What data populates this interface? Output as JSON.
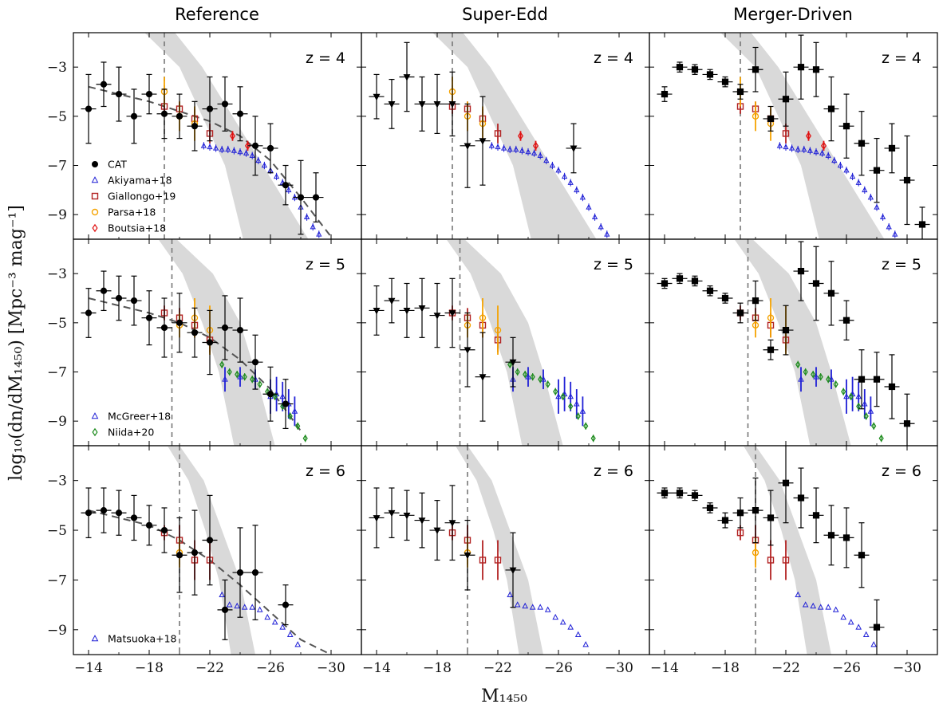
{
  "figure": {
    "column_titles": [
      "Reference",
      "Super-Edd",
      "Merger-Driven"
    ],
    "ylabel": "log₁₀(dn/dM₁₄₅₀) [Mpc⁻³ mag⁻¹]",
    "xlabel": "M₁₄₅₀",
    "x_ticks": [
      "−14",
      "−18",
      "−22",
      "−26",
      "−30"
    ],
    "y_ticks": [
      "−3",
      "−5",
      "−7",
      "−9"
    ],
    "z_labels": [
      "z = 4",
      "z = 5",
      "z = 6"
    ]
  },
  "legends": {
    "z4": [
      "CAT",
      "Akiyama+18",
      "Giallongo+19",
      "Parsa+18",
      "Boutsia+18"
    ],
    "z5": [
      "McGreer+18",
      "Niida+20"
    ],
    "z6": [
      "Matsuoka+18"
    ]
  },
  "colors": {
    "model": "#000000",
    "akiyama": "#1f1fd6",
    "giallongo": "#b22222",
    "parsa": "#f5a300",
    "boutsia": "#e01010",
    "mcgreer": "#1f1fd6",
    "niida": "#1b8a1b",
    "matsuoka": "#1f1fd6",
    "band": "#d9d9d9",
    "fit": "#555555"
  },
  "chart_data": {
    "type": "scatter",
    "xlim": [
      -13,
      -32
    ],
    "ylim": [
      -10,
      -1.6
    ],
    "grid": false,
    "legend_placement": "lower-left",
    "x_ticks": [
      -14,
      -18,
      -22,
      -26,
      -30
    ],
    "y_ticks": [
      -3,
      -5,
      -7,
      -9
    ],
    "vlines": {
      "z4": -19,
      "z5": -19.5,
      "z6": -20
    },
    "band": {
      "z4": {
        "left": [
          [
            -17.7,
            -1.6
          ],
          [
            -20,
            -3
          ],
          [
            -21.5,
            -5
          ],
          [
            -23,
            -7
          ],
          [
            -24.2,
            -10
          ]
        ],
        "right": [
          [
            -19.7,
            -1.6
          ],
          [
            -21.5,
            -3
          ],
          [
            -23.5,
            -5
          ],
          [
            -25.5,
            -7
          ],
          [
            -28.5,
            -10
          ]
        ]
      },
      "z5": {
        "left": [
          [
            -18.6,
            -1.6
          ],
          [
            -20.2,
            -3
          ],
          [
            -21.5,
            -5
          ],
          [
            -22.6,
            -7
          ],
          [
            -23.6,
            -10
          ]
        ],
        "right": [
          [
            -19.8,
            -1.6
          ],
          [
            -22.2,
            -3
          ],
          [
            -24,
            -5
          ],
          [
            -25,
            -7
          ],
          [
            -26.3,
            -10
          ]
        ]
      },
      "z6": {
        "left": [
          [
            -19.2,
            -1.6
          ],
          [
            -20.6,
            -3
          ],
          [
            -21.7,
            -5
          ],
          [
            -22.6,
            -7
          ],
          [
            -23.4,
            -10
          ]
        ],
        "right": [
          [
            -20,
            -1.6
          ],
          [
            -21.6,
            -3
          ],
          [
            -22.8,
            -5
          ],
          [
            -24,
            -7
          ],
          [
            -25,
            -10
          ]
        ]
      }
    },
    "reference_fit": {
      "z4": [
        [
          -14,
          -3.8
        ],
        [
          -16,
          -4.1
        ],
        [
          -18,
          -4.4
        ],
        [
          -20,
          -4.8
        ],
        [
          -22,
          -5.2
        ],
        [
          -24,
          -5.8
        ],
        [
          -26,
          -6.8
        ],
        [
          -28,
          -8.3
        ],
        [
          -30,
          -9.9
        ]
      ],
      "z5": [
        [
          -14,
          -4.0
        ],
        [
          -16,
          -4.3
        ],
        [
          -18,
          -4.6
        ],
        [
          -20,
          -5.0
        ],
        [
          -22,
          -5.6
        ],
        [
          -24,
          -6.5
        ],
        [
          -26,
          -7.7
        ],
        [
          -28,
          -9.4
        ]
      ],
      "z6": [
        [
          -14,
          -4.2
        ],
        [
          -16,
          -4.5
        ],
        [
          -18,
          -4.8
        ],
        [
          -20,
          -5.4
        ],
        [
          -22,
          -6.2
        ],
        [
          -24,
          -7.2
        ],
        [
          -26,
          -8.3
        ],
        [
          -28,
          -9.4
        ],
        [
          -30,
          -10.0
        ]
      ]
    },
    "models": {
      "Reference": {
        "marker": "circle",
        "z4": [
          [
            -14,
            -4.7,
            1.4
          ],
          [
            -15,
            -3.7,
            0.9
          ],
          [
            -16,
            -4.1,
            1.1
          ],
          [
            -17,
            -5.0,
            1.1
          ],
          [
            -18,
            -4.1,
            0.8
          ],
          [
            -19,
            -4.9,
            1.0
          ],
          [
            -20,
            -5.0,
            0.9
          ],
          [
            -21,
            -5.4,
            1.0
          ],
          [
            -22,
            -4.7,
            1.3
          ],
          [
            -23,
            -4.5,
            1.1
          ],
          [
            -24,
            -4.9,
            1.1
          ],
          [
            -25,
            -6.2,
            1.2
          ],
          [
            -26,
            -6.3,
            1.0
          ],
          [
            -27,
            -7.8,
            0.8
          ],
          [
            -28,
            -8.3,
            1.5
          ],
          [
            -29,
            -8.3,
            1.0
          ]
        ],
        "z5": [
          [
            -14,
            -4.6,
            1.0
          ],
          [
            -15,
            -3.7,
            0.8
          ],
          [
            -16,
            -4.0,
            0.9
          ],
          [
            -17,
            -4.1,
            1.0
          ],
          [
            -18,
            -4.8,
            1.1
          ],
          [
            -19,
            -5.2,
            1.2
          ],
          [
            -20,
            -5.0,
            1.2
          ],
          [
            -21,
            -5.4,
            1.0
          ],
          [
            -22,
            -5.8,
            1.3
          ],
          [
            -23,
            -5.2,
            1.3
          ],
          [
            -24,
            -5.3,
            1.3
          ],
          [
            -25,
            -6.6,
            1.1
          ],
          [
            -26,
            -7.9,
            1.1
          ],
          [
            -27,
            -8.3,
            1.0
          ]
        ],
        "z6": [
          [
            -14,
            -4.3,
            1.0
          ],
          [
            -15,
            -4.2,
            0.9
          ],
          [
            -16,
            -4.3,
            0.9
          ],
          [
            -17,
            -4.5,
            0.9
          ],
          [
            -18,
            -4.8,
            0.8
          ],
          [
            -19,
            -5.0,
            0.9
          ],
          [
            -20,
            -6.0,
            1.5
          ],
          [
            -21,
            -5.9,
            1.7
          ],
          [
            -22,
            -5.4,
            1.8
          ],
          [
            -23,
            -8.2,
            1.2
          ],
          [
            -24,
            -6.7,
            1.8
          ],
          [
            -25,
            -6.7,
            1.9
          ],
          [
            -27,
            -8.0,
            0.8
          ]
        ]
      },
      "Super-Edd": {
        "marker": "triangle-down",
        "z4": [
          [
            -14,
            -4.2,
            0.9
          ],
          [
            -15,
            -4.5,
            1.0
          ],
          [
            -16,
            -3.4,
            1.4
          ],
          [
            -17,
            -4.5,
            1.1
          ],
          [
            -18,
            -4.5,
            1.2
          ],
          [
            -19,
            -4.5,
            1.3
          ],
          [
            -20,
            -6.2,
            1.7
          ],
          [
            -21,
            -6.0,
            1.8
          ],
          [
            -27,
            -6.3,
            1.0
          ]
        ],
        "z5": [
          [
            -14,
            -4.5,
            1.0
          ],
          [
            -15,
            -4.1,
            0.9
          ],
          [
            -16,
            -4.5,
            1.1
          ],
          [
            -17,
            -4.4,
            1.2
          ],
          [
            -18,
            -4.7,
            1.3
          ],
          [
            -19,
            -4.6,
            1.4
          ],
          [
            -20,
            -6.1,
            1.5
          ],
          [
            -21,
            -7.2,
            1.8
          ],
          [
            -23,
            -6.6,
            1.0
          ]
        ],
        "z6": [
          [
            -14,
            -4.5,
            1.2
          ],
          [
            -15,
            -4.3,
            1.0
          ],
          [
            -16,
            -4.4,
            1.0
          ],
          [
            -17,
            -4.6,
            1.1
          ],
          [
            -18,
            -5.0,
            1.2
          ],
          [
            -19,
            -4.7,
            1.5
          ],
          [
            -20,
            -6.0,
            1.4
          ],
          [
            -23,
            -6.6,
            1.5
          ]
        ]
      },
      "Merger-Driven": {
        "marker": "square",
        "z4": [
          [
            -14,
            -4.1,
            0.3
          ],
          [
            -15,
            -3.0,
            0.2
          ],
          [
            -16,
            -3.1,
            0.2
          ],
          [
            -17,
            -3.3,
            0.2
          ],
          [
            -18,
            -3.6,
            0.2
          ],
          [
            -19,
            -4.0,
            0.3
          ],
          [
            -20,
            -3.1,
            0.9
          ],
          [
            -21,
            -5.1,
            0.5
          ],
          [
            -22,
            -4.3,
            1.1
          ],
          [
            -23,
            -3.0,
            1.3
          ],
          [
            -24,
            -3.1,
            1.1
          ],
          [
            -25,
            -4.7,
            1.3
          ],
          [
            -26,
            -5.4,
            1.3
          ],
          [
            -27,
            -6.1,
            1.3
          ],
          [
            -28,
            -7.2,
            1.3
          ],
          [
            -29,
            -6.3,
            1.0
          ],
          [
            -30,
            -7.6,
            1.8
          ],
          [
            -31,
            -9.4,
            0.7
          ]
        ],
        "z5": [
          [
            -14,
            -3.4,
            0.2
          ],
          [
            -15,
            -3.2,
            0.2
          ],
          [
            -16,
            -3.3,
            0.2
          ],
          [
            -17,
            -3.7,
            0.2
          ],
          [
            -18,
            -4.0,
            0.2
          ],
          [
            -19,
            -4.6,
            0.4
          ],
          [
            -20,
            -4.1,
            0.8
          ],
          [
            -21,
            -6.1,
            0.4
          ],
          [
            -22,
            -5.3,
            1.0
          ],
          [
            -23,
            -2.9,
            1.2
          ],
          [
            -24,
            -3.4,
            1.5
          ],
          [
            -25,
            -3.8,
            1.3
          ],
          [
            -26,
            -4.9,
            0.8
          ],
          [
            -27,
            -7.3,
            1.2
          ],
          [
            -28,
            -7.3,
            1.1
          ],
          [
            -29,
            -7.6,
            1.3
          ],
          [
            -30,
            -9.1,
            1.2
          ]
        ],
        "z6": [
          [
            -14,
            -3.5,
            0.2
          ],
          [
            -15,
            -3.5,
            0.2
          ],
          [
            -16,
            -3.6,
            0.2
          ],
          [
            -17,
            -4.1,
            0.2
          ],
          [
            -18,
            -4.6,
            0.3
          ],
          [
            -19,
            -4.3,
            0.6
          ],
          [
            -20,
            -4.2,
            1.3
          ],
          [
            -21,
            -4.5,
            1.1
          ],
          [
            -22,
            -3.1,
            1.6
          ],
          [
            -23,
            -3.7,
            1.2
          ],
          [
            -24,
            -4.4,
            1.1
          ],
          [
            -25,
            -5.2,
            1.2
          ],
          [
            -26,
            -5.3,
            1.2
          ],
          [
            -27,
            -6.0,
            1.3
          ],
          [
            -28,
            -8.9,
            1.1
          ]
        ]
      }
    },
    "observations": {
      "z4": {
        "Akiyama+18": [
          [
            -21.6,
            -6.2
          ],
          [
            -22,
            -6.25
          ],
          [
            -22.4,
            -6.3
          ],
          [
            -22.8,
            -6.35
          ],
          [
            -23.2,
            -6.35
          ],
          [
            -23.6,
            -6.4
          ],
          [
            -24,
            -6.45
          ],
          [
            -24.4,
            -6.5
          ],
          [
            -24.8,
            -6.6
          ],
          [
            -25.2,
            -6.8
          ],
          [
            -25.6,
            -7.0
          ],
          [
            -26,
            -7.2
          ],
          [
            -26.4,
            -7.45
          ],
          [
            -26.8,
            -7.7
          ],
          [
            -27.2,
            -8.0
          ],
          [
            -27.6,
            -8.3
          ],
          [
            -28,
            -8.7
          ],
          [
            -28.4,
            -9.1
          ],
          [
            -28.8,
            -9.5
          ],
          [
            -29.2,
            -9.8
          ]
        ],
        "Giallongo+19": [
          [
            -19,
            -4.6,
            0.3
          ],
          [
            -20,
            -4.7,
            0.3
          ],
          [
            -21,
            -5.1,
            0.4
          ],
          [
            -22,
            -5.7,
            0.4
          ]
        ],
        "Parsa+18": [
          [
            -19,
            -4.0,
            0.6
          ],
          [
            -20,
            -5.0,
            0.6
          ],
          [
            -21,
            -5.3,
            0.7
          ]
        ],
        "Boutsia+18": [
          [
            -23.5,
            -5.8,
            0.2
          ],
          [
            -24.5,
            -6.2,
            0.2
          ]
        ]
      },
      "z5": {
        "McGreer+18": [
          [
            -23,
            -7.3,
            0.5
          ],
          [
            -24,
            -7.2,
            0.4
          ],
          [
            -25,
            -7.3,
            0.4
          ],
          [
            -26,
            -8.0,
            0.7
          ],
          [
            -26.4,
            -7.9,
            0.7
          ],
          [
            -26.8,
            -8.0,
            0.6
          ],
          [
            -27.2,
            -8.3,
            0.6
          ],
          [
            -27.6,
            -8.6,
            0.6
          ]
        ],
        "Niida+20": [
          [
            -22.8,
            -6.7
          ],
          [
            -23.3,
            -7.0
          ],
          [
            -23.8,
            -7.1
          ],
          [
            -24.3,
            -7.2
          ],
          [
            -24.8,
            -7.3
          ],
          [
            -25.3,
            -7.5
          ],
          [
            -25.8,
            -7.8
          ],
          [
            -26.3,
            -8.0
          ],
          [
            -26.8,
            -8.4
          ],
          [
            -27.3,
            -8.8
          ],
          [
            -27.8,
            -9.2
          ],
          [
            -28.3,
            -9.7
          ]
        ],
        "Giallongo+19": [
          [
            -19,
            -4.6,
            0.3
          ],
          [
            -20,
            -4.8,
            0.4
          ],
          [
            -21,
            -5.1,
            0.5
          ],
          [
            -22,
            -5.7,
            0.5
          ]
        ],
        "Parsa+18": [
          [
            -20,
            -5.1,
            0.5
          ],
          [
            -21,
            -4.8,
            0.8
          ],
          [
            -22,
            -5.3,
            1.0
          ]
        ]
      },
      "z6": {
        "Matsuoka+18": [
          [
            -22.8,
            -7.6
          ],
          [
            -23.3,
            -8.0
          ],
          [
            -23.8,
            -8.05
          ],
          [
            -24.3,
            -8.1
          ],
          [
            -24.8,
            -8.1
          ],
          [
            -25.3,
            -8.2
          ],
          [
            -25.8,
            -8.5
          ],
          [
            -26.3,
            -8.7
          ],
          [
            -26.8,
            -8.9
          ],
          [
            -27.3,
            -9.2
          ],
          [
            -27.8,
            -9.6
          ]
        ],
        "Giallongo+19": [
          [
            -19,
            -5.1,
            0.3
          ],
          [
            -20,
            -5.4,
            0.6
          ],
          [
            -21,
            -6.2,
            0.8
          ],
          [
            -22,
            -6.2,
            0.8
          ]
        ],
        "Parsa+18": [
          [
            -20,
            -5.9,
            0.6
          ]
        ]
      }
    }
  }
}
